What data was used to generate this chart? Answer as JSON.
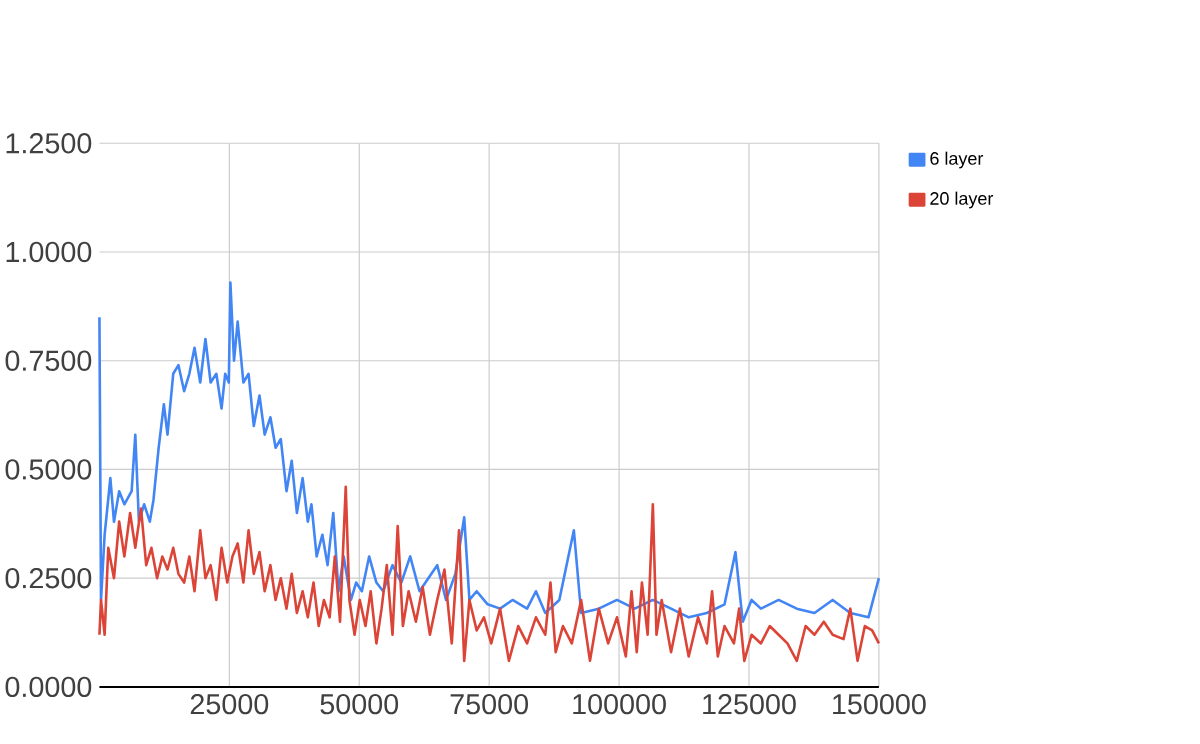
{
  "chart_data": {
    "type": "line",
    "xlim": [
      0,
      150000
    ],
    "ylim": [
      0,
      1.25
    ],
    "xticks": [
      25000,
      50000,
      75000,
      100000,
      125000,
      150000
    ],
    "yticks": [
      {
        "value": 0,
        "label": "0.0000"
      },
      {
        "value": 0.25,
        "label": "0.2500"
      },
      {
        "value": 0.5,
        "label": "0.5000"
      },
      {
        "value": 0.75,
        "label": "0.7500"
      },
      {
        "value": 1,
        "label": "1.0000"
      },
      {
        "value": 1.25,
        "label": "1.2500"
      }
    ],
    "grid": true,
    "legend": "top right",
    "marker": "none",
    "line_style": "solid",
    "series": [
      {
        "name": "6 layer",
        "color": "#4285f4",
        "x": [
          0,
          300,
          1000,
          2100,
          2800,
          3800,
          4800,
          6200,
          6900,
          7600,
          8600,
          9700,
          10400,
          11400,
          12400,
          13100,
          14200,
          15200,
          16300,
          17300,
          18300,
          19400,
          20400,
          21400,
          22500,
          23500,
          24200,
          24900,
          25200,
          25900,
          26600,
          27700,
          28700,
          29700,
          30800,
          31800,
          32900,
          33900,
          34900,
          36000,
          37000,
          38000,
          39100,
          40100,
          40800,
          41800,
          42900,
          43900,
          45000,
          46000,
          47000,
          48400,
          49400,
          50500,
          51900,
          53300,
          54600,
          56400,
          58100,
          59800,
          61600,
          63300,
          65000,
          66700,
          68500,
          70200,
          71200,
          72600,
          74700,
          77100,
          79500,
          82300,
          84000,
          85800,
          88500,
          91300,
          92700,
          96100,
          99600,
          103000,
          106500,
          110000,
          113400,
          116900,
          120300,
          122400,
          123800,
          125500,
          127300,
          130700,
          134200,
          137600,
          141100,
          144500,
          148000,
          150000
        ],
        "values": [
          0.85,
          0.2,
          0.35,
          0.48,
          0.38,
          0.45,
          0.42,
          0.45,
          0.58,
          0.38,
          0.42,
          0.38,
          0.43,
          0.55,
          0.65,
          0.58,
          0.72,
          0.74,
          0.68,
          0.72,
          0.78,
          0.7,
          0.8,
          0.7,
          0.72,
          0.64,
          0.72,
          0.7,
          0.93,
          0.75,
          0.84,
          0.7,
          0.72,
          0.6,
          0.67,
          0.58,
          0.62,
          0.55,
          0.57,
          0.45,
          0.52,
          0.4,
          0.48,
          0.38,
          0.42,
          0.3,
          0.35,
          0.28,
          0.4,
          0.22,
          0.3,
          0.2,
          0.24,
          0.22,
          0.3,
          0.24,
          0.22,
          0.28,
          0.24,
          0.3,
          0.22,
          0.25,
          0.28,
          0.2,
          0.26,
          0.39,
          0.2,
          0.22,
          0.19,
          0.18,
          0.2,
          0.18,
          0.22,
          0.17,
          0.2,
          0.36,
          0.17,
          0.18,
          0.2,
          0.18,
          0.2,
          0.18,
          0.16,
          0.17,
          0.19,
          0.31,
          0.15,
          0.2,
          0.18,
          0.2,
          0.18,
          0.17,
          0.2,
          0.17,
          0.16,
          0.25
        ]
      },
      {
        "name": "20 layer",
        "color": "#db4437",
        "x": [
          0,
          300,
          1000,
          1700,
          2800,
          3800,
          4800,
          5900,
          6900,
          8000,
          9000,
          10000,
          11100,
          12100,
          13100,
          14200,
          15200,
          16300,
          17300,
          18300,
          19400,
          20400,
          21400,
          22500,
          23500,
          24600,
          25600,
          26600,
          27700,
          28700,
          29700,
          30800,
          31800,
          32900,
          33900,
          34900,
          36000,
          37000,
          38000,
          39100,
          40100,
          41200,
          42200,
          43200,
          44300,
          45300,
          46300,
          47400,
          48100,
          49100,
          50100,
          51200,
          52200,
          53300,
          54300,
          55300,
          56400,
          57400,
          58400,
          59500,
          60900,
          62200,
          63600,
          65000,
          66400,
          67800,
          69200,
          70200,
          71200,
          72600,
          74000,
          75400,
          77100,
          78800,
          80600,
          82300,
          84000,
          85800,
          86800,
          87800,
          89200,
          90900,
          92700,
          94400,
          96100,
          97900,
          99600,
          101300,
          102400,
          103400,
          104400,
          105500,
          106500,
          107200,
          108200,
          110000,
          111700,
          113400,
          115200,
          116900,
          117900,
          119000,
          120300,
          122100,
          123100,
          124100,
          125500,
          127300,
          129000,
          130700,
          132400,
          134200,
          135900,
          137600,
          139400,
          141100,
          143200,
          144500,
          145900,
          147300,
          148700,
          150000
        ],
        "values": [
          0.12,
          0.2,
          0.12,
          0.32,
          0.25,
          0.38,
          0.3,
          0.4,
          0.32,
          0.41,
          0.28,
          0.32,
          0.25,
          0.3,
          0.27,
          0.32,
          0.26,
          0.24,
          0.3,
          0.22,
          0.36,
          0.25,
          0.28,
          0.2,
          0.32,
          0.24,
          0.3,
          0.33,
          0.24,
          0.36,
          0.26,
          0.31,
          0.22,
          0.28,
          0.2,
          0.25,
          0.18,
          0.26,
          0.17,
          0.22,
          0.16,
          0.24,
          0.14,
          0.2,
          0.16,
          0.3,
          0.15,
          0.46,
          0.2,
          0.12,
          0.2,
          0.14,
          0.22,
          0.1,
          0.18,
          0.28,
          0.12,
          0.37,
          0.14,
          0.22,
          0.15,
          0.23,
          0.12,
          0.2,
          0.27,
          0.1,
          0.36,
          0.06,
          0.2,
          0.13,
          0.16,
          0.1,
          0.18,
          0.06,
          0.14,
          0.1,
          0.16,
          0.12,
          0.24,
          0.08,
          0.14,
          0.1,
          0.2,
          0.06,
          0.18,
          0.1,
          0.16,
          0.07,
          0.22,
          0.08,
          0.24,
          0.12,
          0.42,
          0.12,
          0.2,
          0.08,
          0.18,
          0.07,
          0.16,
          0.1,
          0.22,
          0.07,
          0.14,
          0.1,
          0.18,
          0.06,
          0.12,
          0.1,
          0.14,
          0.12,
          0.1,
          0.06,
          0.14,
          0.12,
          0.15,
          0.12,
          0.11,
          0.18,
          0.06,
          0.14,
          0.13,
          0.1
        ]
      }
    ]
  }
}
